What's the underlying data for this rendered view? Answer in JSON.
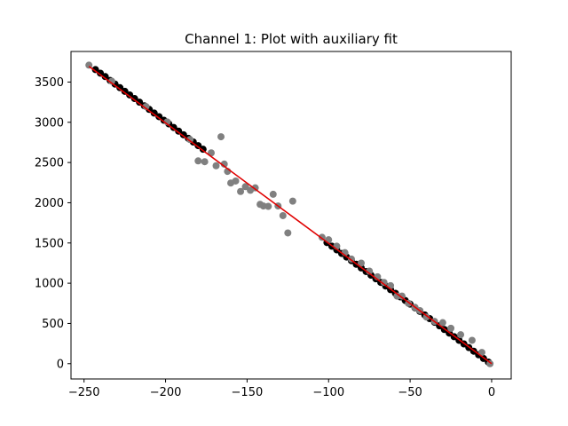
{
  "chart_data": {
    "type": "scatter",
    "title": "Channel 1: Plot with auxiliary fit",
    "xlabel": "",
    "ylabel": "",
    "xlim": [
      -258,
      12
    ],
    "ylim": [
      -190,
      3880
    ],
    "xticks": [
      -250,
      -200,
      -150,
      -100,
      -50,
      0
    ],
    "xtick_labels": [
      "−250",
      "−200",
      "−150",
      "−100",
      "−50",
      "0"
    ],
    "yticks": [
      0,
      500,
      1000,
      1500,
      2000,
      2500,
      3000,
      3500
    ],
    "ytick_labels": [
      "0",
      "500",
      "1000",
      "1500",
      "2000",
      "2500",
      "3000",
      "3500"
    ],
    "grid": false,
    "colors": {
      "black_points": "#000000",
      "gray_points": "#808080",
      "fit_line": "#e00000"
    },
    "series": [
      {
        "kind": "scatter",
        "color": "#000000",
        "x": [
          -243,
          -240,
          -237,
          -234,
          -231,
          -228,
          -225,
          -222,
          -219,
          -216,
          -213,
          -210,
          -207,
          -204,
          -201,
          -198,
          -195,
          -192,
          -189,
          -186,
          -183,
          -180,
          -177,
          -101,
          -98,
          -95,
          -92,
          -89,
          -86,
          -83,
          -80,
          -77,
          -74,
          -71,
          -68,
          -65,
          -62,
          -59,
          -56,
          -53,
          -50,
          -47,
          -44,
          -41,
          -38,
          -35,
          -32,
          -29,
          -26,
          -23,
          -20,
          -17,
          -14,
          -11,
          -8,
          -5,
          -2
        ],
        "y": [
          3655,
          3610,
          3568,
          3520,
          3475,
          3430,
          3385,
          3340,
          3295,
          3250,
          3205,
          3160,
          3115,
          3070,
          3025,
          2980,
          2935,
          2890,
          2845,
          2800,
          2755,
          2710,
          2665,
          1505,
          1460,
          1415,
          1370,
          1325,
          1280,
          1235,
          1190,
          1145,
          1100,
          1055,
          1010,
          965,
          920,
          875,
          830,
          785,
          740,
          695,
          650,
          605,
          560,
          515,
          470,
          425,
          380,
          335,
          290,
          245,
          200,
          155,
          110,
          65,
          20
        ]
      },
      {
        "kind": "scatter",
        "color": "#808080",
        "x": [
          -247,
          -233,
          -212,
          -199,
          -185,
          -180,
          -176,
          -172,
          -169,
          -166,
          -164,
          -162,
          -160,
          -157,
          -154,
          -151,
          -148,
          -145,
          -142,
          -140,
          -137,
          -134,
          -131,
          -128,
          -125,
          -122,
          -104,
          -100,
          -95,
          -90,
          -86,
          -80,
          -75,
          -70,
          -66,
          -62,
          -58,
          -55,
          -51,
          -47,
          -44,
          -40,
          -35,
          -30,
          -25,
          -19,
          -12,
          -6,
          -1
        ],
        "y": [
          3710,
          3510,
          3195,
          3005,
          2785,
          2520,
          2510,
          2620,
          2460,
          2820,
          2480,
          2390,
          2245,
          2270,
          2140,
          2200,
          2155,
          2185,
          1980,
          1960,
          1955,
          2105,
          1960,
          1840,
          1625,
          2020,
          1570,
          1540,
          1460,
          1380,
          1300,
          1250,
          1150,
          1080,
          1010,
          970,
          840,
          840,
          750,
          700,
          660,
          580,
          525,
          510,
          440,
          360,
          290,
          140,
          0
        ]
      },
      {
        "kind": "line",
        "color": "#e00000",
        "x": [
          -247,
          0
        ],
        "y": [
          3695,
          0
        ]
      }
    ]
  }
}
